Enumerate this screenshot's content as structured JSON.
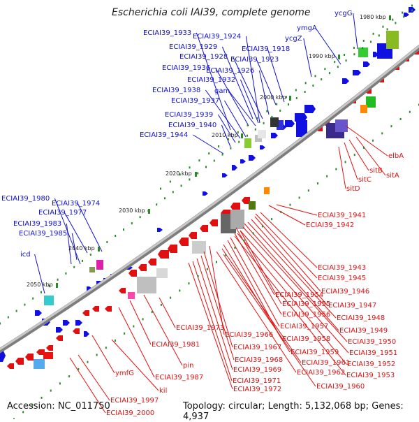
{
  "title": "Escherichia coli IAI39, complete genome",
  "footer": {
    "accession": "Accession: NC_011750",
    "summary": "Topology: circular; Length: 5,132,068 bp; Genes: 4,937"
  },
  "colors": {
    "forward_label": "#1010d0",
    "reverse_label": "#e01010",
    "forward_feature": "#1010e0",
    "reverse_feature": "#e01010",
    "backbone": "#9a9a9a",
    "tick": "#2a8a2a"
  },
  "ticks": [
    "1980 kbp",
    "1990 kbp",
    "2000 kbp",
    "2010 kbp",
    "2020 kbp",
    "2030 kbp",
    "2040 kbp",
    "2050 kbp"
  ],
  "forward_genes": [
    "ECIAI39_1933",
    "ECIAI39_1924",
    "ECIAI39_1929",
    "ECIAI39_1918",
    "ECIAI39_1928",
    "ECIAI39_1923",
    "ECIAI39_1936",
    "ECIAI39_1926",
    "ECIAI39_1932",
    "ECIAI39_1938",
    "gam",
    "ECIAI39_1937",
    "ECIAI39_1939",
    "ECIAI39_1940",
    "ECIAI39_1944",
    "ycgG",
    "ymgA",
    "ycgZ",
    "ECIAI39_1980",
    "ECIAI39_1974",
    "ECIAI39_1977",
    "ECIAI39_1983",
    "ECIAI39_1985",
    "icd"
  ],
  "reverse_genes": [
    "elbA",
    "sitB",
    "sitA",
    "sitC",
    "sitD",
    "ECIAI39_1941",
    "ECIAI39_1942",
    "ECIAI39_1943",
    "ECIAI39_1945",
    "ECIAI39_1946",
    "ECIAI39_1954",
    "ECIAI39_1947",
    "ECIAI39_1955",
    "ECIAI39_1948",
    "ECIAI39_1956",
    "ECIAI39_1949",
    "ECIAI39_1973",
    "ECIAI39_1957",
    "ECIAI39_1966",
    "ECIAI39_1950",
    "ECIAI39_1958",
    "ECIAI39_1981",
    "ECIAI39_1967",
    "ECIAI39_1959",
    "ECIAI39_1951",
    "pin",
    "ECIAI39_1968",
    "ECIAI39_1961",
    "ECIAI39_1952",
    "ECIAI39_1969",
    "ECIAI39_1962",
    "ECIAI39_1953",
    "ymfG",
    "ECIAI39_1987",
    "ECIAI39_1971",
    "ECIAI39_1960",
    "ECIAI39_1972",
    "kil",
    "ECIAI39_1997",
    "ECIAI39_2000"
  ]
}
